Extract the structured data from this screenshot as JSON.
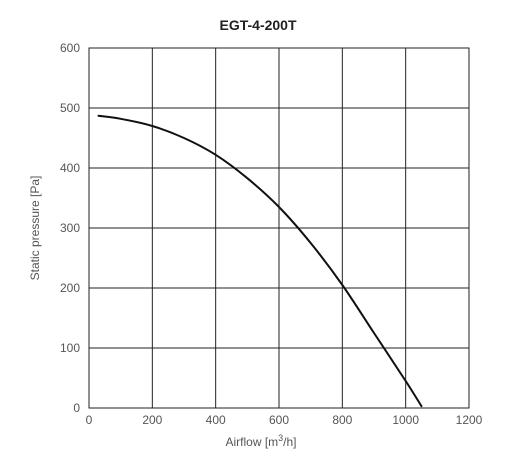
{
  "chart_data": {
    "type": "line",
    "title": "EGT-4-200T",
    "xlabel_prefix": "Airflow [m",
    "xlabel_sup": "3",
    "xlabel_suffix": "/h]",
    "ylabel": "Static pressure [Pa]",
    "xlim": [
      0,
      1200
    ],
    "ylim": [
      0,
      600
    ],
    "x_ticks": [
      0,
      200,
      400,
      600,
      800,
      1000,
      1200
    ],
    "y_ticks": [
      0,
      100,
      200,
      300,
      400,
      500,
      600
    ],
    "grid": true,
    "series": [
      {
        "x": [
          30,
          100,
          200,
          300,
          400,
          500,
          600,
          700,
          800,
          900,
          1000,
          1050
        ],
        "y": [
          487,
          482,
          470,
          450,
          422,
          383,
          335,
          275,
          205,
          125,
          45,
          3
        ]
      }
    ]
  }
}
